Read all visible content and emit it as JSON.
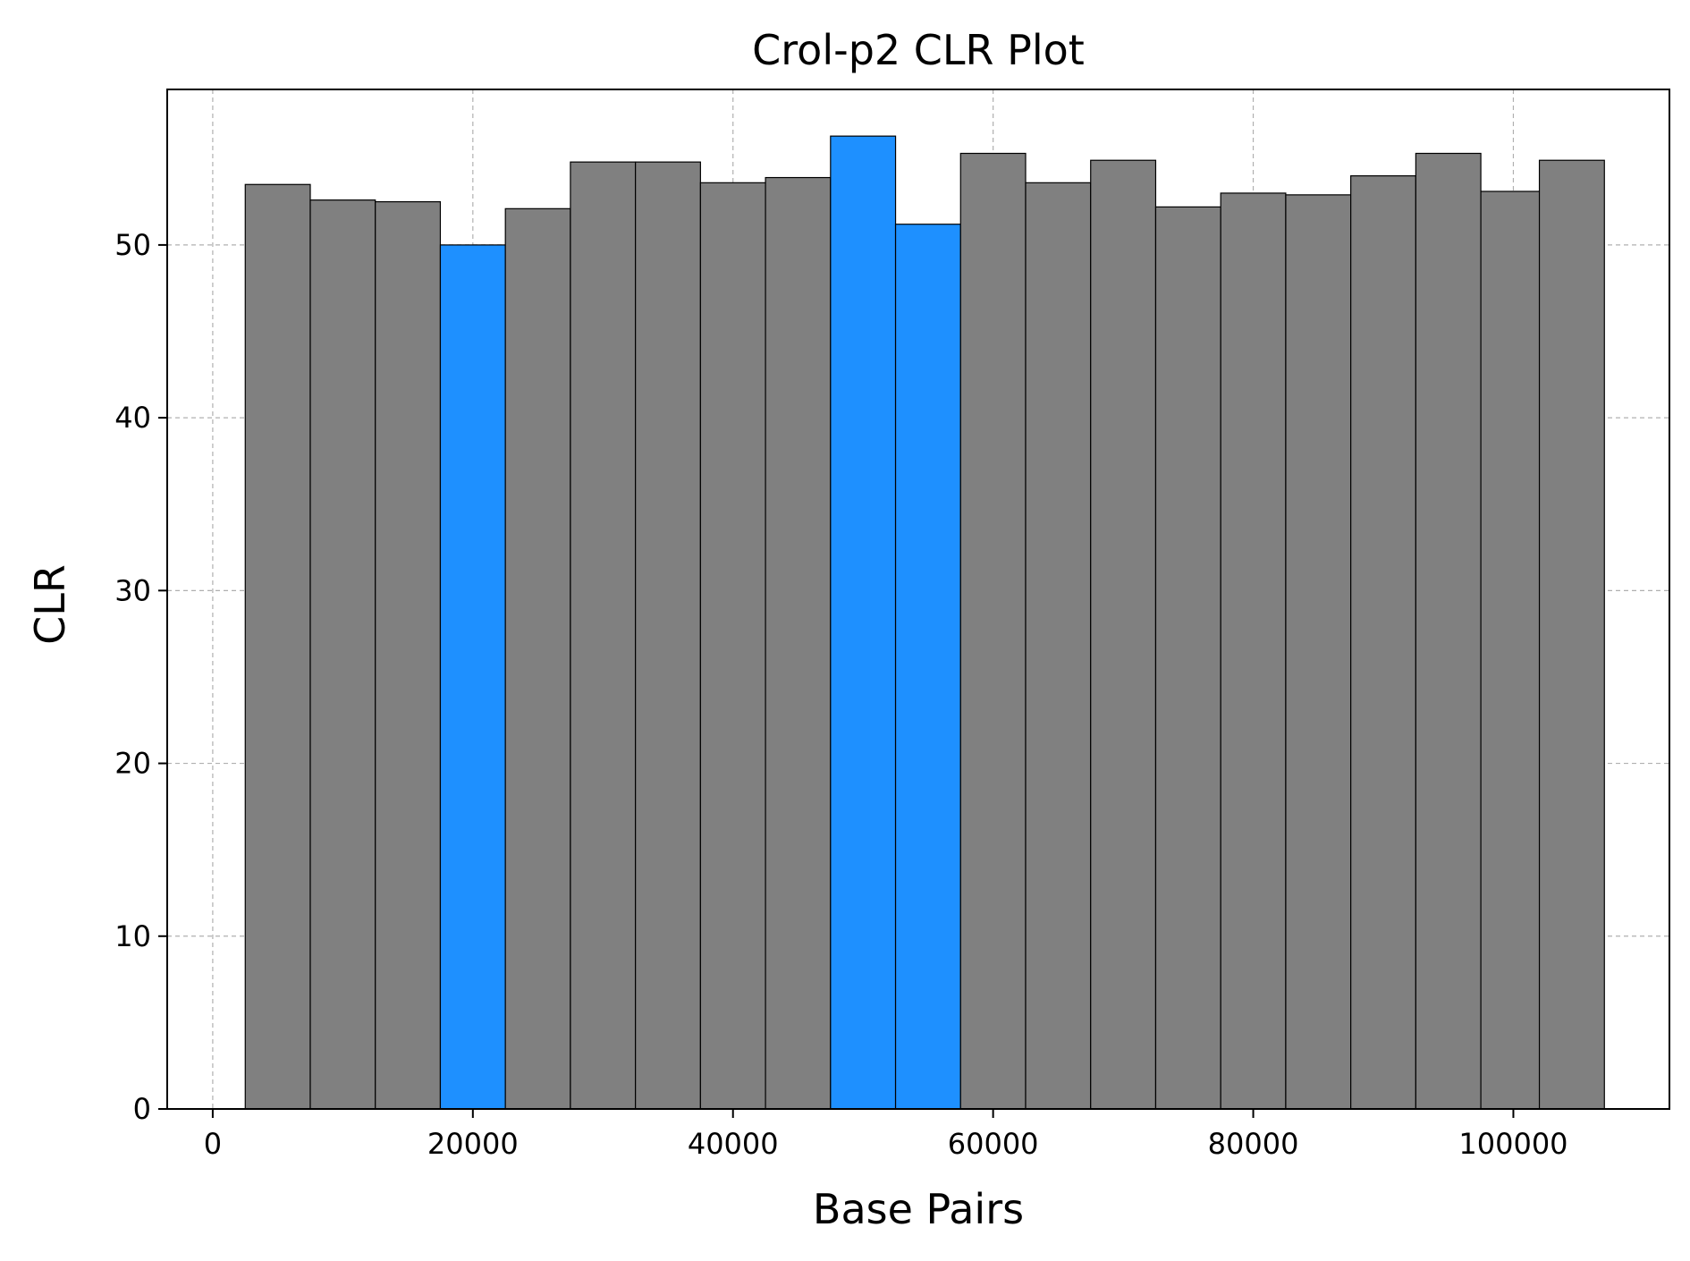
{
  "chart_data": {
    "type": "bar",
    "title": "Crol-p2 CLR Plot",
    "xlabel": "Base Pairs",
    "ylabel": "CLR",
    "xlim": [
      -3500,
      112000
    ],
    "ylim": [
      0,
      59
    ],
    "xticks": [
      0,
      20000,
      40000,
      60000,
      80000,
      100000
    ],
    "xtick_labels": [
      "0",
      "20000",
      "40000",
      "60000",
      "80000",
      "100000"
    ],
    "yticks": [
      0,
      10,
      20,
      30,
      40,
      50
    ],
    "ytick_labels": [
      "0",
      "10",
      "20",
      "30",
      "40",
      "50"
    ],
    "grid": true,
    "bin_width": 5000,
    "bin_centers": [
      5000,
      10000,
      15000,
      20000,
      25000,
      30000,
      35000,
      40000,
      45000,
      50000,
      55000,
      60000,
      65000,
      70000,
      75000,
      80000,
      85000,
      90000,
      95000,
      100000,
      104500
    ],
    "values": [
      53.5,
      52.6,
      52.5,
      50.0,
      52.1,
      54.8,
      54.8,
      53.6,
      53.9,
      56.3,
      51.2,
      55.3,
      53.6,
      54.9,
      52.2,
      53.0,
      52.9,
      54.0,
      55.3,
      53.1,
      54.9
    ],
    "highlight": [
      false,
      false,
      false,
      true,
      false,
      false,
      false,
      false,
      false,
      true,
      true,
      false,
      false,
      false,
      false,
      false,
      false,
      false,
      false,
      false,
      false
    ],
    "colors": {
      "default": "#808080",
      "highlight": "#1e90ff"
    }
  }
}
